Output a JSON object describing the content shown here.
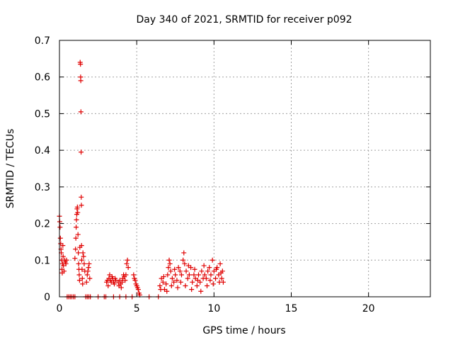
{
  "colors": {
    "series": "#e00000",
    "grid": "#a0a0a0",
    "axis": "#000000"
  },
  "chart_data": {
    "type": "scatter",
    "title": "Day 340 of 2021, SRMTID for receiver p092",
    "xlabel": "GPS time / hours",
    "ylabel": "SRMTID / TECUs",
    "xlim": [
      0,
      24
    ],
    "ylim": [
      0,
      0.7
    ],
    "xticks": [
      0,
      5,
      10,
      15,
      20
    ],
    "yticks": [
      0,
      0.1,
      0.2,
      0.3,
      0.4,
      0.5,
      0.6,
      0.7
    ],
    "grid": true,
    "marker": "+",
    "series": [
      {
        "name": "SRMTID",
        "points": [
          [
            0.0,
            0.22
          ],
          [
            0.02,
            0.205
          ],
          [
            0.04,
            0.19
          ],
          [
            0.06,
            0.16
          ],
          [
            0.08,
            0.145
          ],
          [
            0.1,
            0.13
          ],
          [
            0.12,
            0.12
          ],
          [
            0.14,
            0.1
          ],
          [
            0.16,
            0.075
          ],
          [
            0.18,
            0.065
          ],
          [
            0.2,
            0.09
          ],
          [
            0.22,
            0.14
          ],
          [
            0.24,
            0.11
          ],
          [
            0.26,
            0.085
          ],
          [
            0.3,
            0.07
          ],
          [
            0.34,
            0.1
          ],
          [
            0.38,
            0.095
          ],
          [
            0.42,
            0.09
          ],
          [
            0.46,
            0.1
          ],
          [
            0.5,
            0.0
          ],
          [
            0.6,
            0.0
          ],
          [
            0.7,
            0.0
          ],
          [
            0.8,
            0.0
          ],
          [
            0.9,
            0.0
          ],
          [
            1.0,
            0.0
          ],
          [
            1.0,
            0.105
          ],
          [
            1.04,
            0.13
          ],
          [
            1.06,
            0.16
          ],
          [
            1.08,
            0.19
          ],
          [
            1.1,
            0.21
          ],
          [
            1.12,
            0.225
          ],
          [
            1.14,
            0.24
          ],
          [
            1.16,
            0.245
          ],
          [
            1.18,
            0.23
          ],
          [
            1.2,
            0.17
          ],
          [
            1.22,
            0.12
          ],
          [
            1.24,
            0.09
          ],
          [
            1.26,
            0.075
          ],
          [
            1.28,
            0.06
          ],
          [
            1.3,
            0.045
          ],
          [
            1.32,
            0.135
          ],
          [
            1.34,
            0.64
          ],
          [
            1.36,
            0.635
          ],
          [
            1.37,
            0.6
          ],
          [
            1.38,
            0.59
          ],
          [
            1.39,
            0.505
          ],
          [
            1.4,
            0.395
          ],
          [
            1.41,
            0.272
          ],
          [
            1.42,
            0.25
          ],
          [
            1.43,
            0.14
          ],
          [
            1.44,
            0.1
          ],
          [
            1.46,
            0.075
          ],
          [
            1.48,
            0.05
          ],
          [
            1.5,
            0.035
          ],
          [
            1.52,
            0.12
          ],
          [
            1.56,
            0.11
          ],
          [
            1.6,
            0.09
          ],
          [
            1.64,
            0.07
          ],
          [
            1.7,
            0.0
          ],
          [
            1.8,
            0.0
          ],
          [
            1.9,
            0.0
          ],
          [
            2.0,
            0.0
          ],
          [
            1.75,
            0.04
          ],
          [
            1.8,
            0.06
          ],
          [
            1.84,
            0.07
          ],
          [
            1.88,
            0.08
          ],
          [
            1.92,
            0.09
          ],
          [
            1.96,
            0.05
          ],
          [
            2.5,
            0.0
          ],
          [
            2.9,
            0.0
          ],
          [
            3.0,
            0.0
          ],
          [
            3.05,
            0.04
          ],
          [
            3.1,
            0.045
          ],
          [
            3.15,
            0.03
          ],
          [
            3.2,
            0.05
          ],
          [
            3.25,
            0.06
          ],
          [
            3.3,
            0.045
          ],
          [
            3.35,
            0.04
          ],
          [
            3.4,
            0.055
          ],
          [
            3.45,
            0.05
          ],
          [
            3.5,
            0.04
          ],
          [
            3.55,
            0.035
          ],
          [
            3.6,
            0.05
          ],
          [
            3.65,
            0.045
          ],
          [
            3.5,
            0.0
          ],
          [
            3.9,
            0.0
          ],
          [
            3.8,
            0.04
          ],
          [
            3.85,
            0.03
          ],
          [
            3.9,
            0.045
          ],
          [
            3.95,
            0.035
          ],
          [
            4.0,
            0.025
          ],
          [
            4.05,
            0.04
          ],
          [
            4.1,
            0.05
          ],
          [
            4.15,
            0.06
          ],
          [
            4.2,
            0.055
          ],
          [
            4.25,
            0.045
          ],
          [
            4.3,
            0.06
          ],
          [
            4.35,
            0.09
          ],
          [
            4.4,
            0.1
          ],
          [
            4.45,
            0.08
          ],
          [
            4.3,
            0.0
          ],
          [
            4.7,
            0.0
          ],
          [
            4.8,
            0.06
          ],
          [
            4.85,
            0.05
          ],
          [
            4.9,
            0.045
          ],
          [
            4.95,
            0.035
          ],
          [
            5.0,
            0.03
          ],
          [
            5.05,
            0.025
          ],
          [
            5.1,
            0.02
          ],
          [
            5.15,
            0.01
          ],
          [
            5.2,
            0.005
          ],
          [
            5.8,
            0.0
          ],
          [
            6.4,
            0.0
          ],
          [
            6.5,
            0.03
          ],
          [
            6.6,
            0.05
          ],
          [
            6.7,
            0.04
          ],
          [
            6.8,
            0.02
          ],
          [
            6.9,
            0.035
          ],
          [
            7.0,
            0.06
          ],
          [
            7.05,
            0.08
          ],
          [
            7.1,
            0.1
          ],
          [
            7.15,
            0.09
          ],
          [
            7.2,
            0.07
          ],
          [
            7.3,
            0.05
          ],
          [
            7.4,
            0.04
          ],
          [
            7.5,
            0.06
          ],
          [
            7.6,
            0.045
          ],
          [
            7.7,
            0.08
          ],
          [
            7.8,
            0.07
          ],
          [
            7.9,
            0.06
          ],
          [
            8.0,
            0.1
          ],
          [
            8.05,
            0.12
          ],
          [
            8.1,
            0.09
          ],
          [
            8.2,
            0.07
          ],
          [
            8.3,
            0.05
          ],
          [
            8.4,
            0.06
          ],
          [
            8.5,
            0.08
          ],
          [
            8.6,
            0.04
          ],
          [
            8.7,
            0.06
          ],
          [
            8.8,
            0.05
          ],
          [
            8.9,
            0.03
          ],
          [
            9.0,
            0.06
          ],
          [
            9.1,
            0.04
          ],
          [
            9.2,
            0.07
          ],
          [
            9.3,
            0.05
          ],
          [
            9.4,
            0.06
          ],
          [
            9.5,
            0.05
          ],
          [
            9.6,
            0.07
          ],
          [
            9.7,
            0.08
          ],
          [
            9.8,
            0.06
          ],
          [
            9.9,
            0.1
          ],
          [
            10.0,
            0.07
          ],
          [
            10.1,
            0.05
          ],
          [
            10.2,
            0.08
          ],
          [
            10.3,
            0.06
          ],
          [
            10.4,
            0.09
          ],
          [
            10.5,
            0.05
          ],
          [
            10.55,
            0.07
          ],
          [
            10.6,
            0.04
          ],
          [
            6.55,
            0.02
          ],
          [
            6.75,
            0.055
          ],
          [
            6.95,
            0.015
          ],
          [
            7.25,
            0.03
          ],
          [
            7.45,
            0.075
          ],
          [
            7.65,
            0.025
          ],
          [
            7.85,
            0.04
          ],
          [
            8.15,
            0.03
          ],
          [
            8.35,
            0.085
          ],
          [
            8.55,
            0.02
          ],
          [
            8.75,
            0.075
          ],
          [
            8.95,
            0.045
          ],
          [
            9.15,
            0.015
          ],
          [
            9.35,
            0.085
          ],
          [
            9.55,
            0.03
          ],
          [
            9.75,
            0.045
          ],
          [
            9.95,
            0.035
          ],
          [
            10.15,
            0.075
          ],
          [
            10.35,
            0.04
          ],
          [
            10.45,
            0.065
          ]
        ]
      }
    ]
  }
}
